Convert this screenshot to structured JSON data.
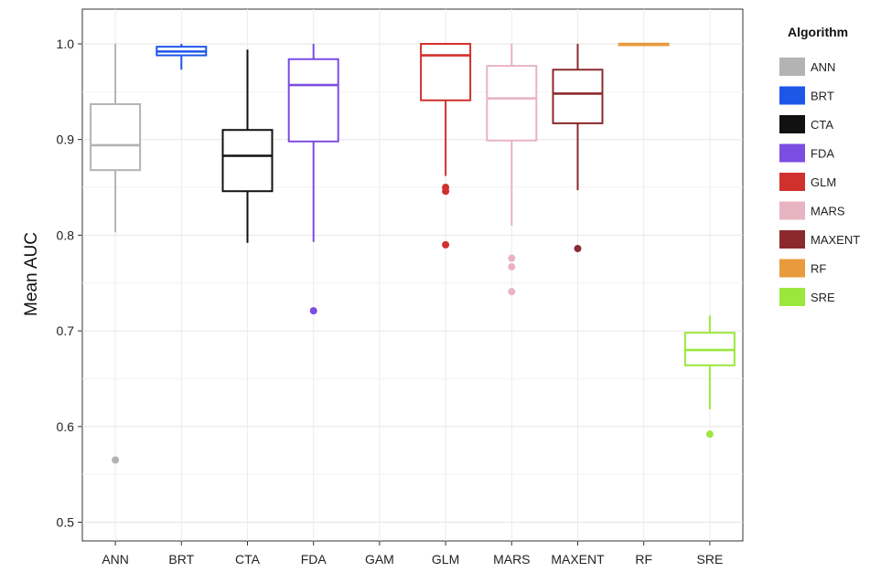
{
  "chart_data": {
    "type": "boxplot",
    "ylabel": "Mean AUC",
    "xlabel": "",
    "ylim": [
      0.47,
      1.04
    ],
    "yticks": [
      0.5,
      0.6,
      0.7,
      0.8,
      0.9,
      1.0
    ],
    "ytick_labels": [
      "0.5",
      "0.6",
      "0.7",
      "0.8",
      "0.9",
      "1.0"
    ],
    "grid": true,
    "legend": {
      "title": "Algorithm",
      "placement": "right"
    },
    "categories": [
      "ANN",
      "BRT",
      "CTA",
      "FDA",
      "GAM",
      "GLM",
      "MARS",
      "MAXENT",
      "RF",
      "SRE"
    ],
    "series": [
      {
        "name": "ANN",
        "color": "#b3b3b3",
        "whisker_low": 0.803,
        "q1": 0.868,
        "median": 0.894,
        "q3": 0.937,
        "whisker_high": 1.0,
        "outliers": [
          0.565
        ]
      },
      {
        "name": "BRT",
        "color": "#1e56e8",
        "whisker_low": 0.973,
        "q1": 0.988,
        "median": 0.992,
        "q3": 0.997,
        "whisker_high": 1.0,
        "outliers": []
      },
      {
        "name": "CTA",
        "color": "#111111",
        "whisker_low": 0.792,
        "q1": 0.846,
        "median": 0.883,
        "q3": 0.91,
        "whisker_high": 0.994,
        "outliers": []
      },
      {
        "name": "FDA",
        "color": "#7b4de0",
        "whisker_low": 0.793,
        "q1": 0.898,
        "median": 0.957,
        "q3": 0.984,
        "whisker_high": 1.0,
        "outliers": [
          0.721
        ]
      },
      {
        "name": "GAM",
        "color": "#999999",
        "whisker_low": null,
        "q1": null,
        "median": null,
        "q3": null,
        "whisker_high": null,
        "outliers": []
      },
      {
        "name": "GLM",
        "color": "#d0312d",
        "whisker_low": 0.862,
        "q1": 0.941,
        "median": 0.988,
        "q3": 1.0,
        "whisker_high": 1.0,
        "outliers": [
          0.85,
          0.846,
          0.79
        ]
      },
      {
        "name": "MARS",
        "color": "#e8b4c2",
        "whisker_low": 0.81,
        "q1": 0.899,
        "median": 0.943,
        "q3": 0.977,
        "whisker_high": 1.0,
        "outliers": [
          0.776,
          0.767,
          0.741
        ]
      },
      {
        "name": "MAXENT",
        "color": "#8b2a2e",
        "whisker_low": 0.847,
        "q1": 0.917,
        "median": 0.948,
        "q3": 0.973,
        "whisker_high": 1.0,
        "outliers": [
          0.786
        ]
      },
      {
        "name": "RF",
        "color": "#e89a3c",
        "whisker_low": 0.999,
        "q1": 0.999,
        "median": 1.0,
        "q3": 1.0,
        "whisker_high": 1.0,
        "outliers": []
      },
      {
        "name": "SRE",
        "color": "#9be83c",
        "whisker_low": 0.618,
        "q1": 0.664,
        "median": 0.68,
        "q3": 0.698,
        "whisker_high": 0.716,
        "outliers": [
          0.592
        ]
      }
    ],
    "legend_entries": [
      {
        "label": "ANN",
        "color": "#b3b3b3"
      },
      {
        "label": "BRT",
        "color": "#1e56e8"
      },
      {
        "label": "CTA",
        "color": "#111111"
      },
      {
        "label": "FDA",
        "color": "#7b4de0"
      },
      {
        "label": "GLM",
        "color": "#d0312d"
      },
      {
        "label": "MARS",
        "color": "#e8b4c2"
      },
      {
        "label": "MAXENT",
        "color": "#8b2a2e"
      },
      {
        "label": "RF",
        "color": "#e89a3c"
      },
      {
        "label": "SRE",
        "color": "#9be83c"
      }
    ]
  }
}
